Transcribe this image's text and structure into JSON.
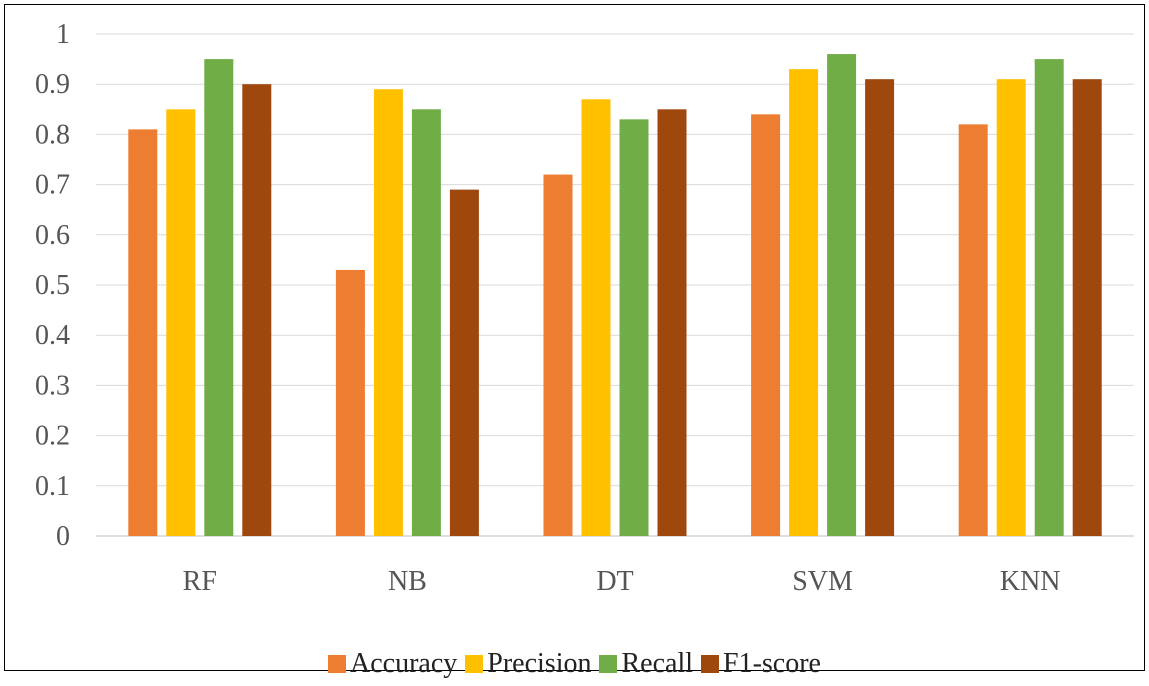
{
  "chart_data": {
    "type": "bar",
    "title": "",
    "xlabel": "",
    "ylabel": "",
    "categories": [
      "RF",
      "NB",
      "DT",
      "SVM",
      "KNN"
    ],
    "ylim": [
      0,
      1
    ],
    "yticks": [
      "0",
      "0.1",
      "0.2",
      "0.3",
      "0.4",
      "0.5",
      "0.6",
      "0.7",
      "0.8",
      "0.9",
      "1"
    ],
    "grid": true,
    "legend_position": "bottom",
    "series": [
      {
        "name": "Accuracy",
        "color": "#ED7D31",
        "values": [
          0.81,
          0.53,
          0.72,
          0.84,
          0.82
        ]
      },
      {
        "name": "Precision",
        "color": "#FFC000",
        "values": [
          0.85,
          0.89,
          0.87,
          0.93,
          0.91
        ]
      },
      {
        "name": "Recall",
        "color": "#70AD47",
        "values": [
          0.95,
          0.85,
          0.83,
          0.96,
          0.95
        ]
      },
      {
        "name": "F1-score",
        "color": "#9E480E",
        "values": [
          0.9,
          0.69,
          0.85,
          0.91,
          0.91
        ]
      }
    ]
  }
}
